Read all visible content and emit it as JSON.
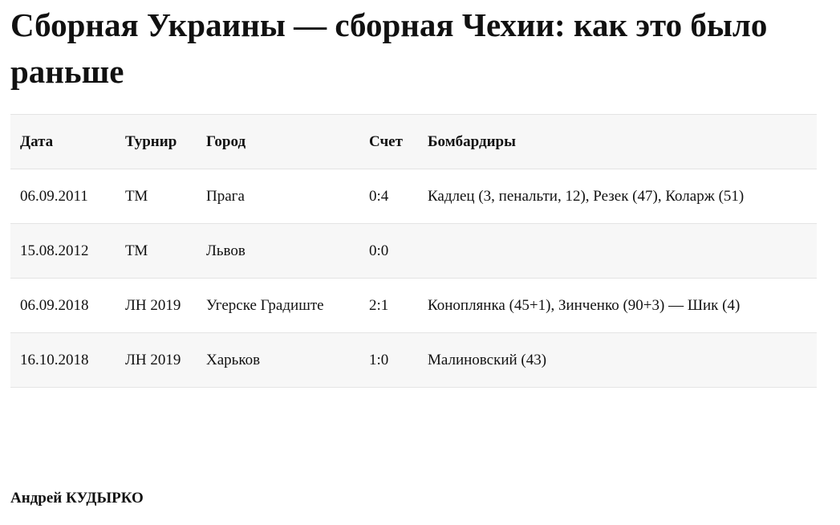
{
  "title": "Сборная Украины — сборная Чехии: как это было раньше",
  "table": {
    "headers": [
      "Дата",
      "Турнир",
      "Город",
      "Счет",
      "Бомбардиры"
    ],
    "rows": [
      [
        "06.09.2011",
        "ТМ",
        "Прага",
        "0:4",
        "Кадлец (3, пенальти, 12), Резек (47), Коларж (51)"
      ],
      [
        "15.08.2012",
        "ТМ",
        "Львов",
        "0:0",
        ""
      ],
      [
        "06.09.2018",
        "ЛН 2019",
        "Угерске Градиште",
        "2:1",
        "Коноплянка (45+1), Зинченко (90+3) — Шик (4)"
      ],
      [
        "16.10.2018",
        "ЛН 2019",
        "Харьков",
        "1:0",
        "Малиновский (43)"
      ]
    ]
  },
  "author": "Андрей КУДЫРКО"
}
